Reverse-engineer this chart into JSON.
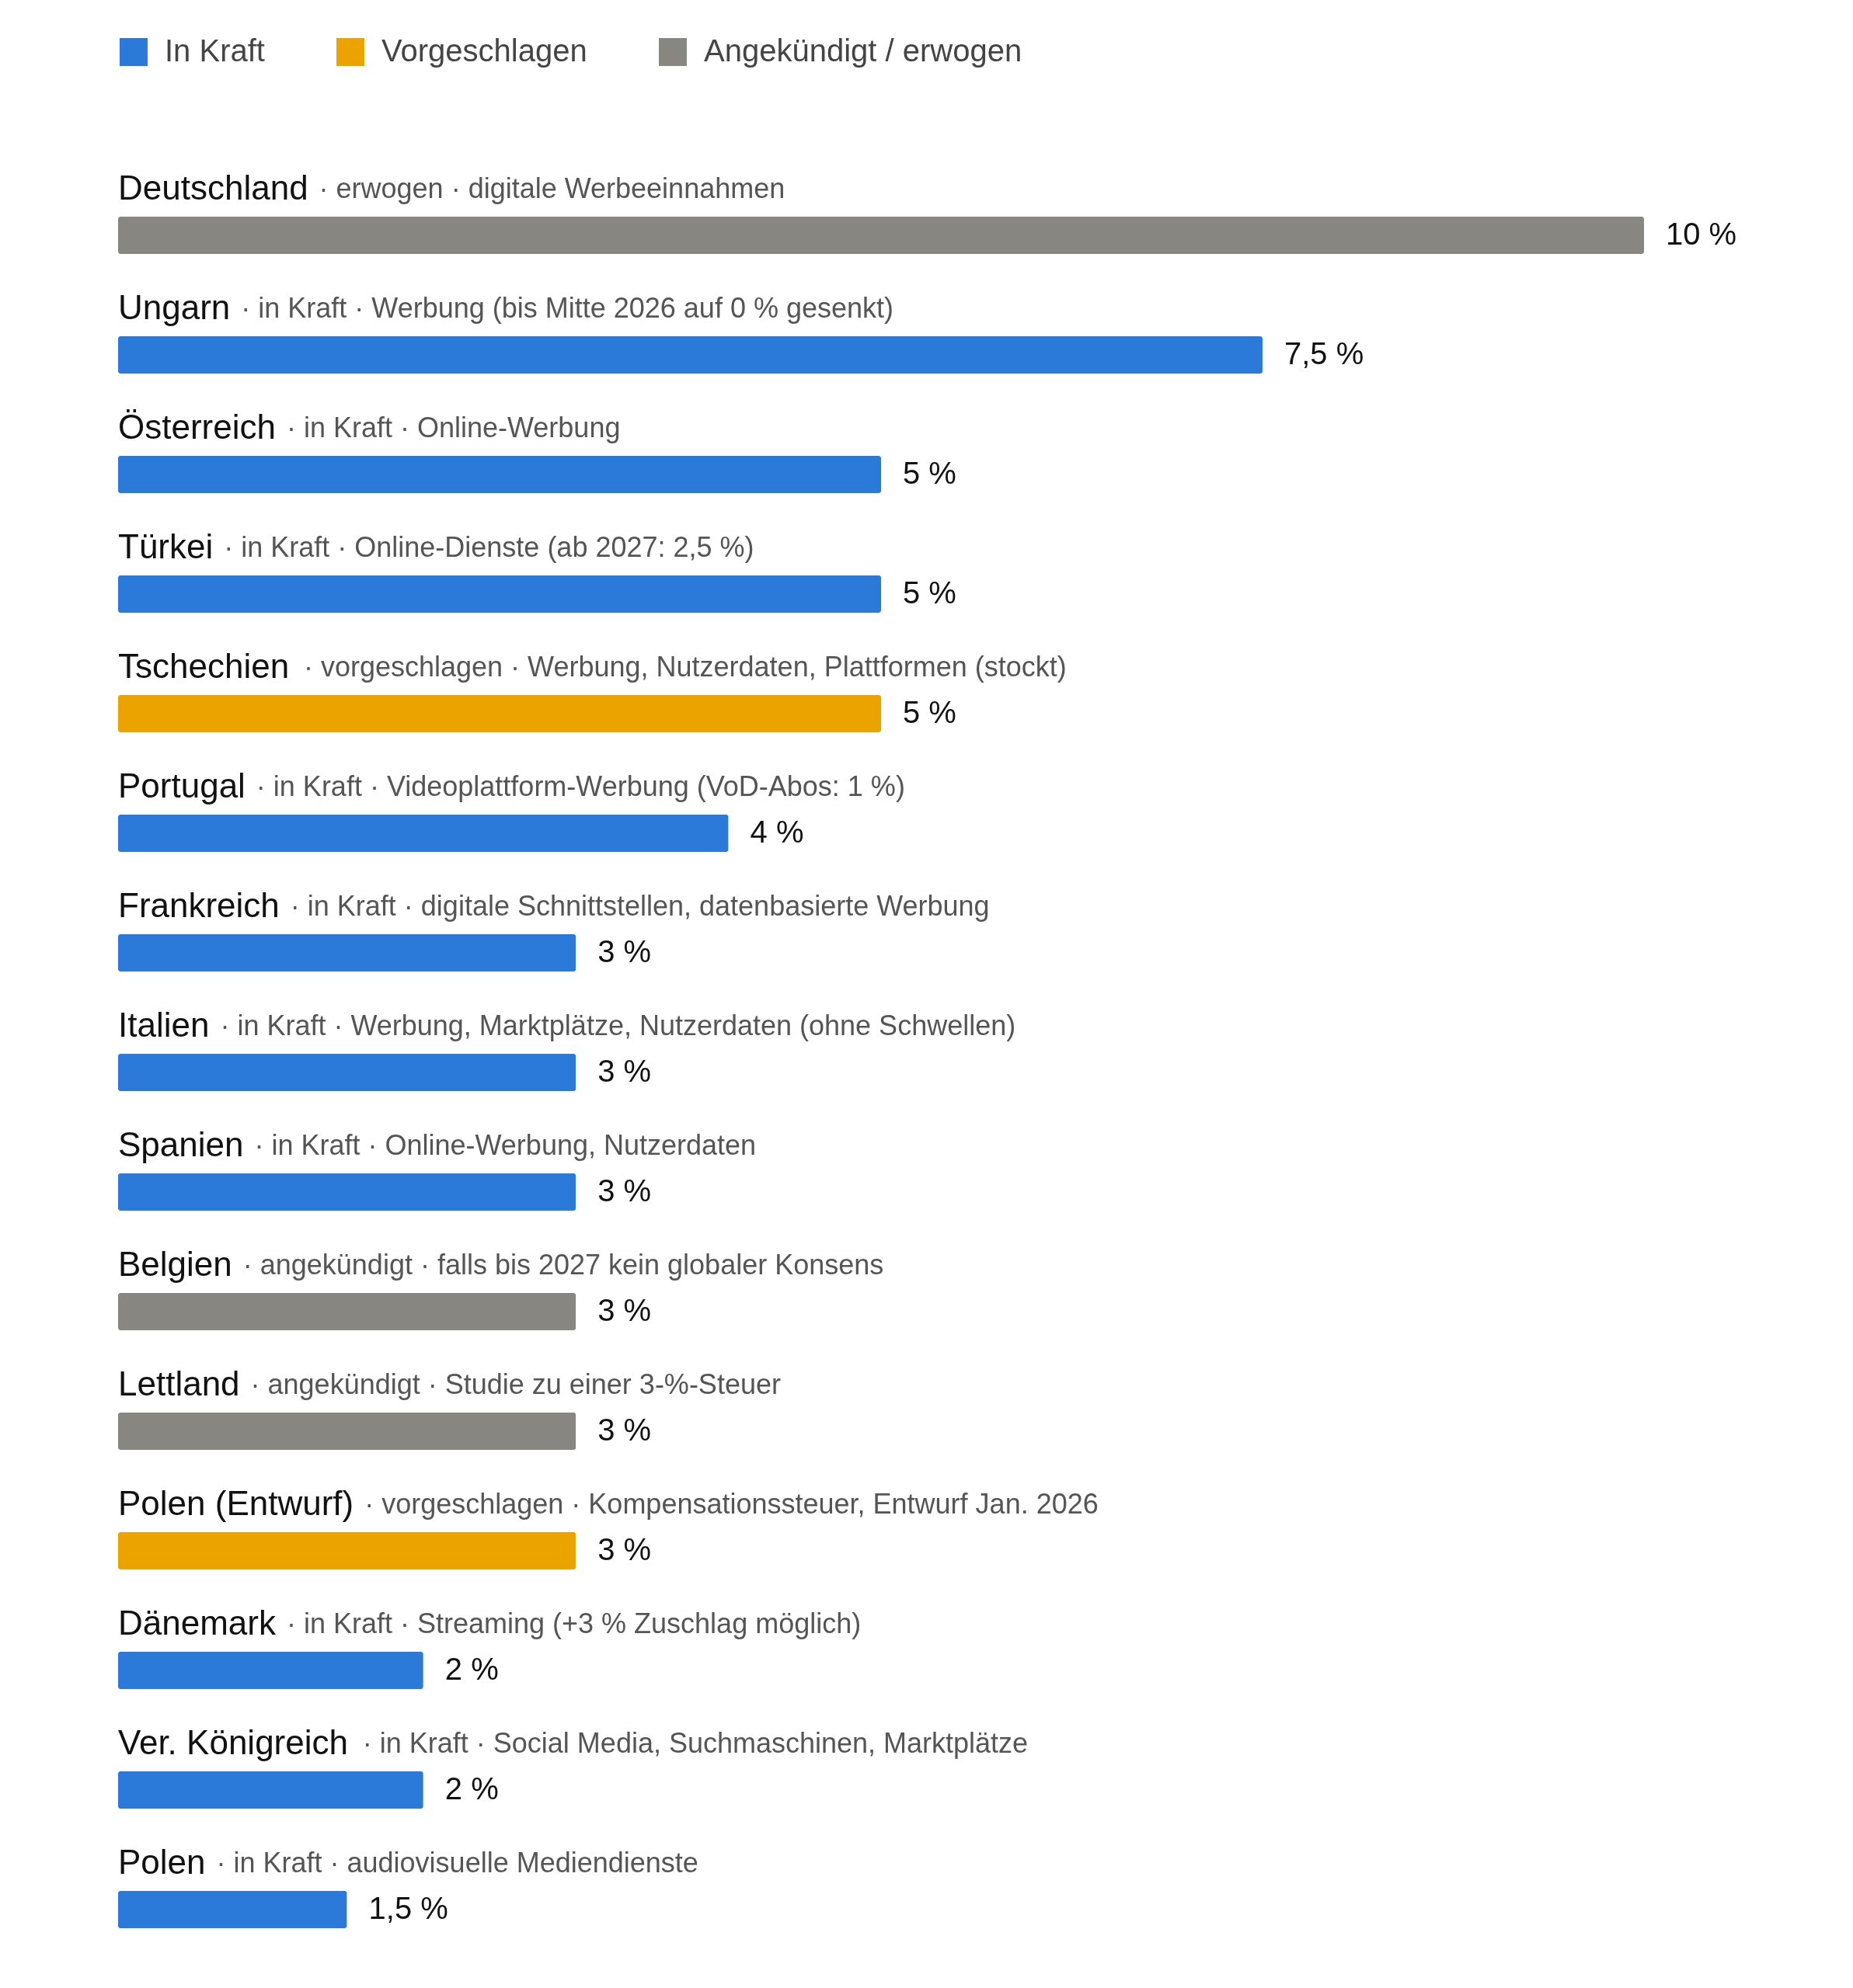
{
  "chart_data": {
    "type": "bar",
    "orientation": "horizontal",
    "legend": "top left",
    "categories": [
      "Deutschland",
      "Ungarn",
      "Österreich",
      "Türkei",
      "Tschechien",
      "Portugal",
      "Frankreich",
      "Italien",
      "Spanien",
      "Belgien",
      "Lettland",
      "Polen (Entwurf)",
      "Dänemark",
      "Ver. Königreich",
      "Polen"
    ],
    "series": [
      {
        "name": "In Kraft",
        "color": "#2b79d9",
        "values": [
          null,
          7.5,
          5,
          5,
          null,
          4,
          3,
          3,
          3,
          null,
          null,
          null,
          2,
          2,
          1.5
        ],
        "value_labels": [
          null,
          "7,5 %",
          "5 %",
          "5 %",
          null,
          "4 %",
          "3 %",
          "3 %",
          "3 %",
          null,
          null,
          null,
          "2 %",
          "2 %",
          "1,5 %"
        ]
      },
      {
        "name": "Vorgeschlagen",
        "color": "#eba300",
        "values": [
          null,
          null,
          null,
          null,
          5,
          null,
          null,
          null,
          null,
          null,
          null,
          3,
          null,
          null,
          null
        ],
        "value_labels": [
          null,
          null,
          null,
          null,
          "5 %",
          null,
          null,
          null,
          null,
          null,
          null,
          "3 %",
          null,
          null,
          null
        ]
      },
      {
        "name": "Angekündigt / erwogen",
        "color": "#878681",
        "values": [
          10,
          null,
          null,
          null,
          null,
          null,
          null,
          null,
          null,
          3,
          3,
          null,
          null,
          null,
          null
        ],
        "value_labels": [
          "10 %",
          null,
          null,
          null,
          null,
          null,
          null,
          null,
          null,
          "3 %",
          "3 %",
          null,
          null,
          null,
          null
        ]
      }
    ],
    "annotations": [
      "· erwogen · digitale Werbeeinnahmen",
      "· in Kraft · Werbung (bis Mitte 2026 auf 0 % gesenkt)",
      "· in Kraft · Online-Werbung",
      "· in Kraft · Online-Dienste (ab 2027: 2,5 %)",
      "· vorgeschlagen · Werbung, Nutzerdaten, Plattformen (stockt)",
      "· in Kraft · Videoplattform-Werbung (VoD-Abos: 1 %)",
      "· in Kraft · digitale Schnittstellen, datenbasierte Werbung",
      "· in Kraft · Werbung, Marktplätze, Nutzerdaten (ohne Schwellen)",
      "· in Kraft · Online-Werbung, Nutzerdaten",
      "· angekündigt · falls bis 2027 kein globaler Konsens",
      "· angekündigt · Studie zu einer 3-%-Steuer",
      "· vorgeschlagen · Kompensationssteuer, Entwurf Jan. 2026",
      "· in Kraft · Streaming (+3 % Zuschlag möglich)",
      "· in Kraft · Social Media, Suchmaschinen, Marktplätze",
      "· in Kraft · audiovisuelle Mediendienste"
    ]
  }
}
